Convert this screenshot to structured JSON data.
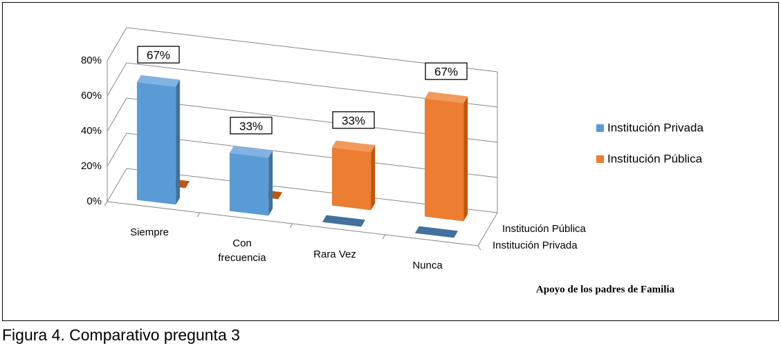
{
  "chart_data": {
    "type": "bar3d",
    "title": "Apoyo de los padres de Familia",
    "categories": [
      "Siempre",
      "Con frecuencia",
      "Rara Vez",
      "Nunca"
    ],
    "series": [
      {
        "name": "Institución Privada",
        "color": "#5b9bd5",
        "side_color": "#41719c",
        "top_color": "#80b3e3",
        "values": [
          67,
          33,
          0,
          0
        ],
        "value_labels": [
          "67%",
          "33%",
          null,
          null
        ]
      },
      {
        "name": "Institución Pública",
        "color": "#ed7d31",
        "side_color": "#c0560f",
        "top_color": "#f29a5c",
        "values": [
          0,
          0,
          33,
          67
        ],
        "value_labels": [
          null,
          null,
          "33%",
          "67%"
        ]
      }
    ],
    "ylim": [
      0,
      80
    ],
    "yticks": [
      {
        "value": 0,
        "label": "0%"
      },
      {
        "value": 20,
        "label": "20%"
      },
      {
        "value": 40,
        "label": "40%"
      },
      {
        "value": 60,
        "label": "60%"
      },
      {
        "value": 80,
        "label": "80%"
      }
    ],
    "grid": true
  },
  "caption": "Figura 4. Comparativo pregunta 3"
}
